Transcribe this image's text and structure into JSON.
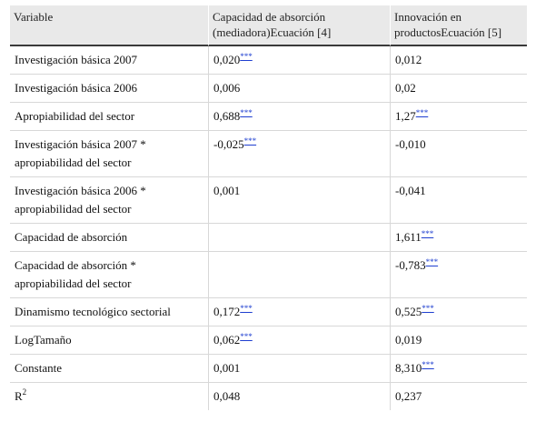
{
  "table": {
    "headers": {
      "variable": "Variable",
      "col2": "Capacidad de absorción (mediadora)Ecuación [4]",
      "col3": "Innovación en productosEcuación [5]"
    },
    "significance_marker": "***",
    "r2_label": "R",
    "r2_sup": "2",
    "rows": [
      {
        "variable": "Investigación básica 2007",
        "c2": "0,020",
        "c2_sig": true,
        "c3": "0,012",
        "c3_sig": false
      },
      {
        "variable": "Investigación básica 2006",
        "c2": "0,006",
        "c2_sig": false,
        "c3": "0,02",
        "c3_sig": false
      },
      {
        "variable": "Apropiabilidad del sector",
        "c2": "0,688",
        "c2_sig": true,
        "c3": "1,27",
        "c3_sig": true
      },
      {
        "variable": "Investigación básica 2007 * apropiabilidad del sector",
        "c2": "-0,025",
        "c2_sig": true,
        "c3": "-0,010",
        "c3_sig": false
      },
      {
        "variable": "Investigación básica 2006 * apropiabilidad del sector",
        "c2": "0,001",
        "c2_sig": false,
        "c3": "-0,041",
        "c3_sig": false
      },
      {
        "variable": "Capacidad de absorción",
        "c2": "",
        "c2_sig": false,
        "c3": "1,611",
        "c3_sig": true
      },
      {
        "variable": "Capacidad de absorción * apropiabilidad del sector",
        "c2": "",
        "c2_sig": false,
        "c3": "-0,783",
        "c3_sig": true
      },
      {
        "variable": "Dinamismo tecnológico sectorial",
        "c2": "0,172",
        "c2_sig": true,
        "c3": "0,525",
        "c3_sig": true
      },
      {
        "variable": "LogTamaño",
        "c2": "0,062",
        "c2_sig": true,
        "c3": "0,019",
        "c3_sig": false
      },
      {
        "variable": "Constante",
        "c2": "0,001",
        "c2_sig": false,
        "c3": "8,310",
        "c3_sig": true
      },
      {
        "variable": "",
        "c2": "0,048",
        "c2_sig": false,
        "c3": "0,237",
        "c3_sig": false
      }
    ]
  }
}
